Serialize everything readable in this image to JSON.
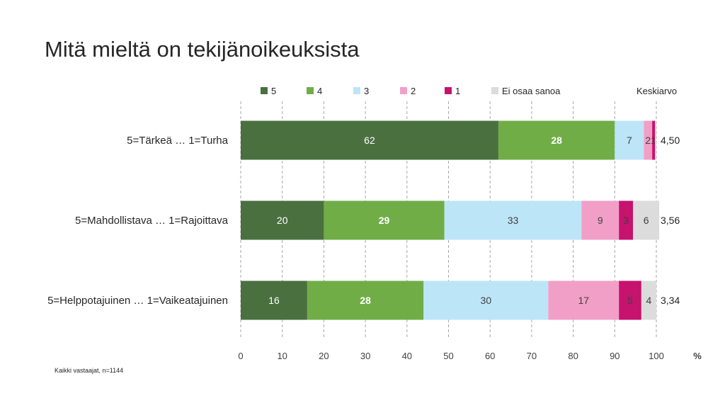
{
  "title": "Mitä mieltä on tekijänoikeuksista",
  "footnote": "Kaikki vastaajat, n=1144",
  "avg_header": "Keskiarvo",
  "colors": {
    "text": "#262626",
    "grid": "#a6a6a6",
    "label_light": "#ffffff",
    "label_dark": "#404040"
  },
  "chart_data": {
    "type": "bar",
    "orientation": "horizontal",
    "stacked": true,
    "xlabel": "%",
    "xlim": [
      0,
      100
    ],
    "xticks": [
      0,
      10,
      20,
      30,
      40,
      50,
      60,
      70,
      80,
      90,
      100
    ],
    "grid": true,
    "legend_position": "top",
    "categories": [
      "5=Tärkeä … 1=Turha",
      "5=Mahdollistava … 1=Rajoittava",
      "5=Helppotajuinen … 1=Vaikeatajuinen"
    ],
    "series": [
      {
        "name": "5",
        "color": "#4a7040",
        "label_color": "light",
        "bold": false,
        "values": [
          62,
          20,
          16
        ],
        "labels": [
          "62",
          "20",
          "16"
        ]
      },
      {
        "name": "4",
        "color": "#70ad47",
        "label_color": "light",
        "bold": true,
        "values": [
          28,
          29,
          28
        ],
        "labels": [
          "28",
          "29",
          "28"
        ]
      },
      {
        "name": "3",
        "color": "#bde5f8",
        "label_color": "dark",
        "bold": false,
        "values": [
          7,
          33,
          30
        ],
        "labels": [
          "7",
          "33",
          "30"
        ]
      },
      {
        "name": "2",
        "color": "#f29fc8",
        "label_color": "dark",
        "bold": false,
        "values": [
          2,
          9,
          17
        ],
        "labels": [
          "2",
          "9",
          "17"
        ]
      },
      {
        "name": "1",
        "color": "#c5136e",
        "label_color": "dark",
        "bold": false,
        "values": [
          0.7,
          3.4,
          5.4
        ],
        "labels": [
          "1",
          "3",
          "5"
        ]
      },
      {
        "name": "Ei osaa sanoa",
        "color": "#dcdcdc",
        "label_color": "dark",
        "bold": false,
        "values": [
          0.3,
          6.3,
          3.6
        ],
        "labels": [
          "",
          "6",
          "4"
        ]
      }
    ],
    "averages": [
      "4,50",
      "3,56",
      "3,34"
    ]
  }
}
